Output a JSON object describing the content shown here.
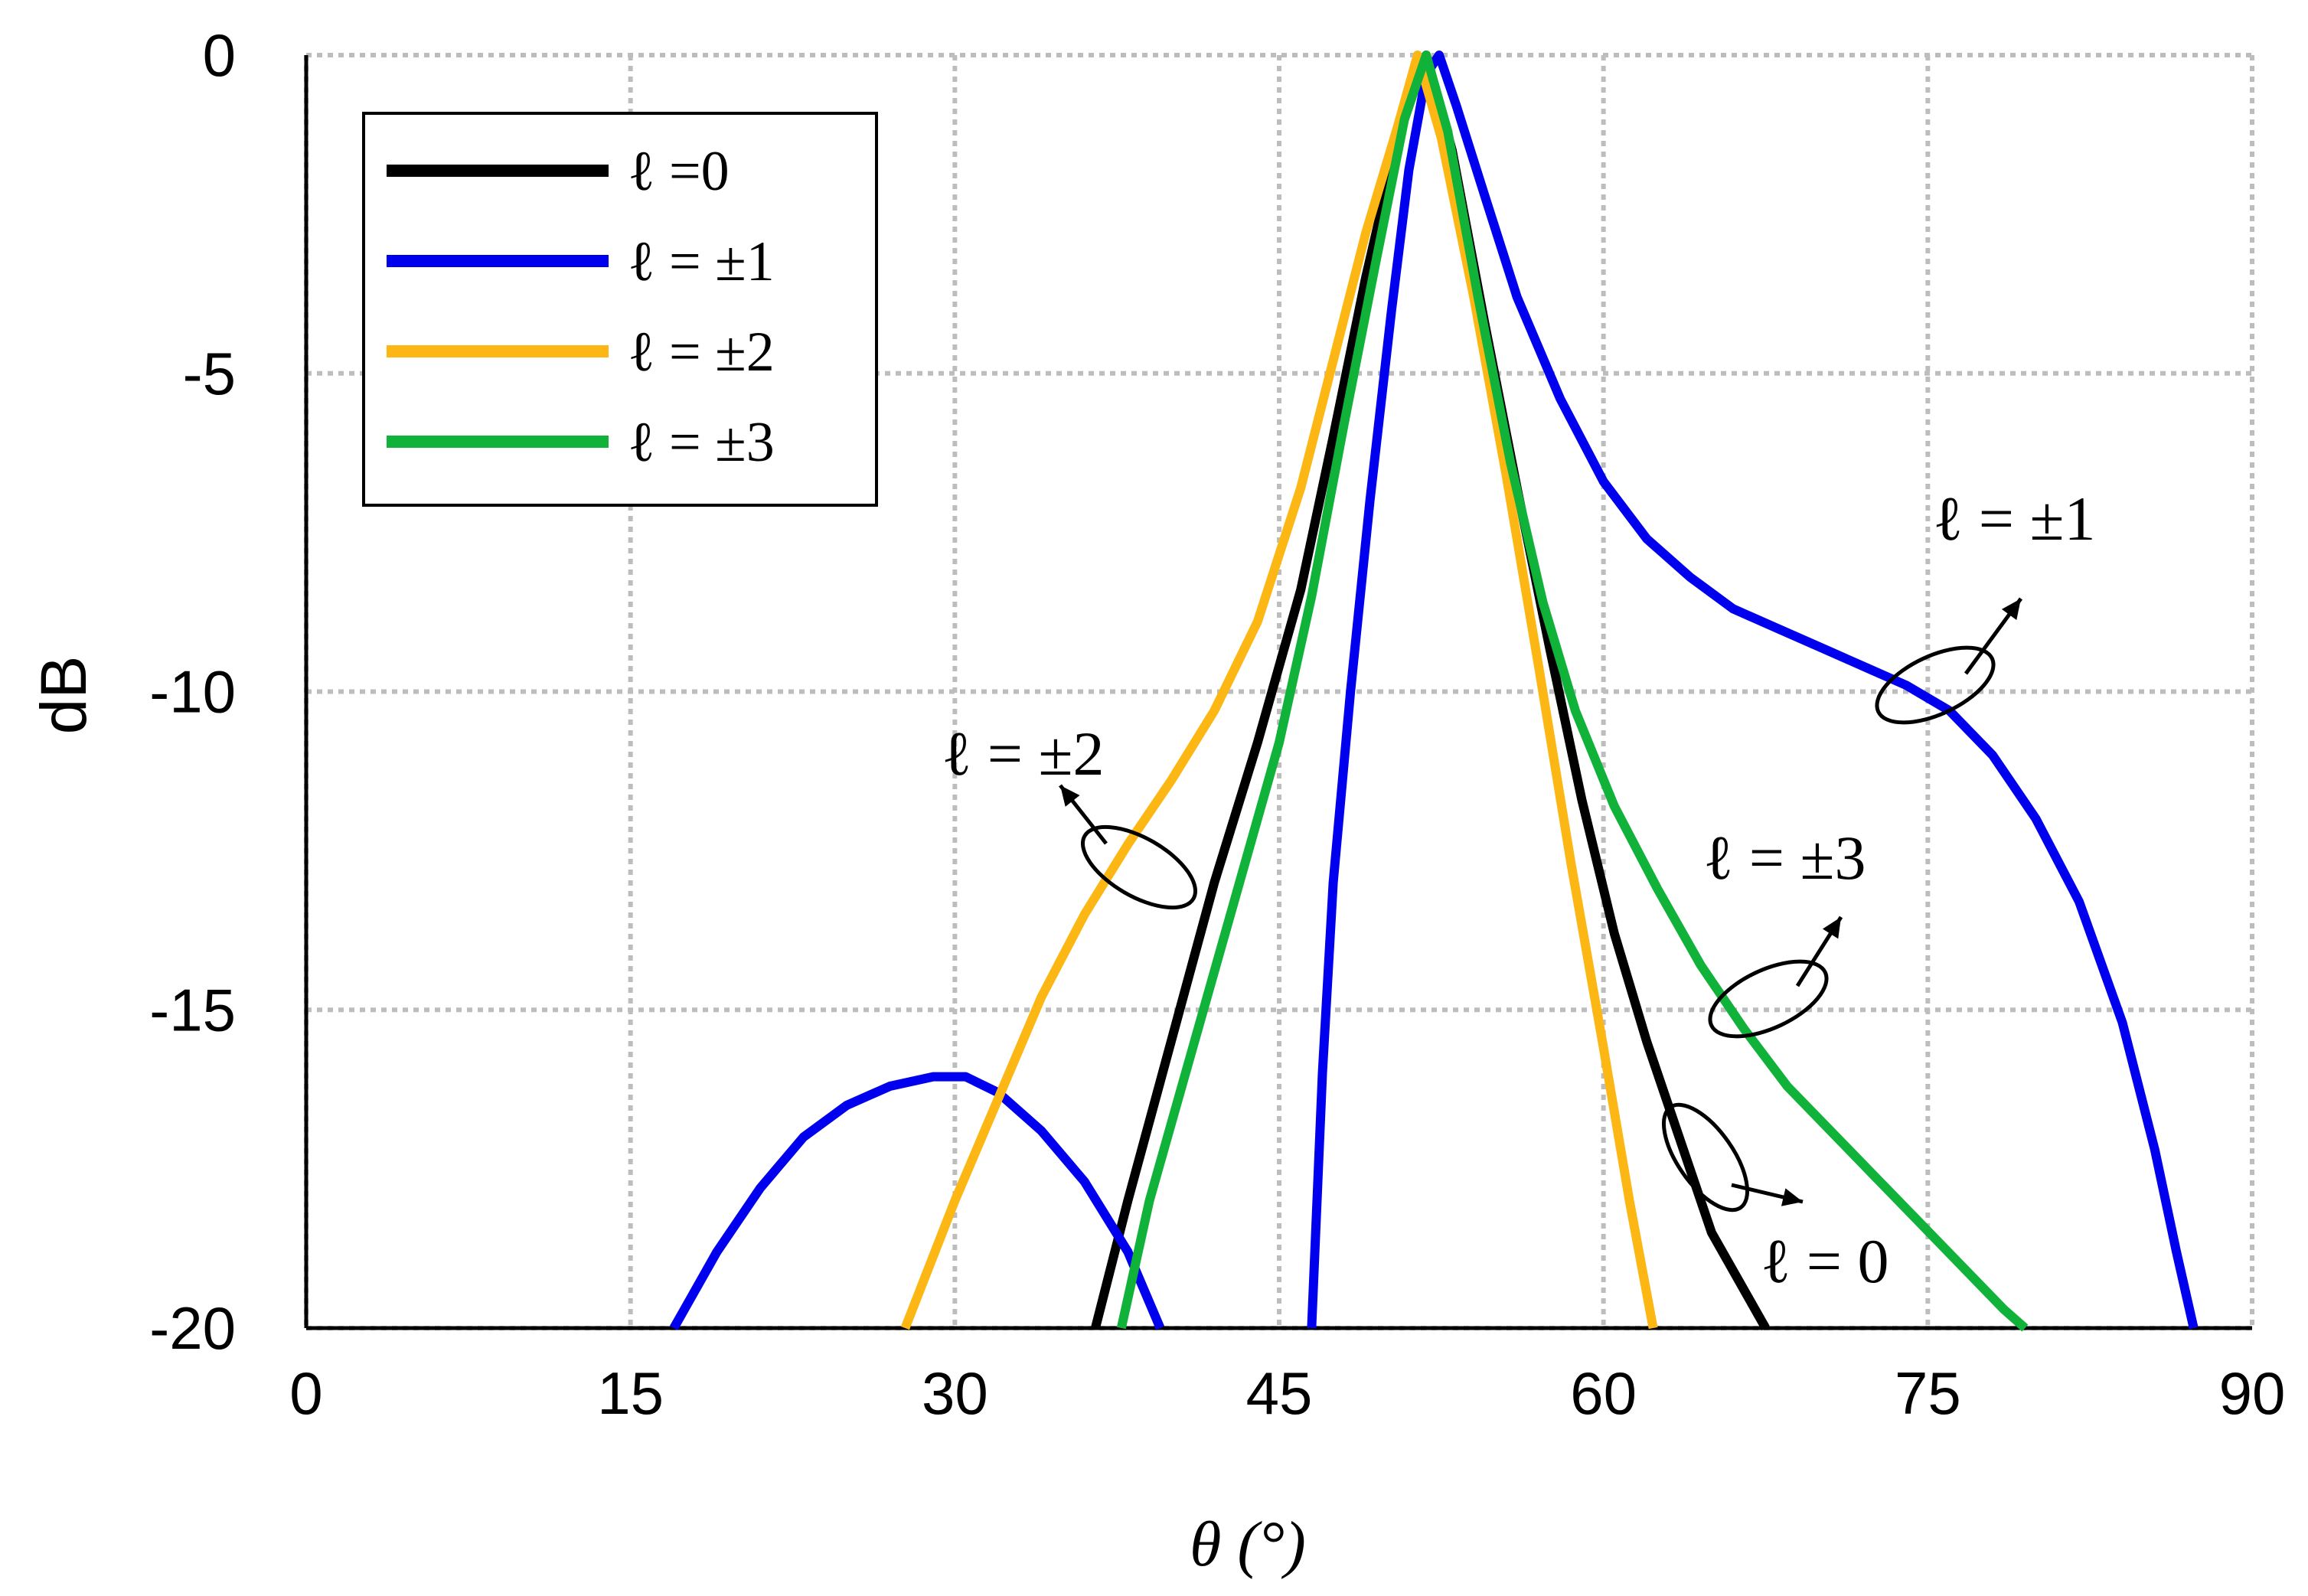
{
  "chart_data": {
    "type": "line",
    "xlabel": "θ (°)",
    "ylabel": "dB",
    "xlim": [
      0,
      90
    ],
    "ylim": [
      -20,
      0
    ],
    "xticks": [
      "0",
      "15",
      "30",
      "45",
      "60",
      "75",
      "90"
    ],
    "yticks": [
      "0",
      "-5",
      "-10",
      "-15",
      "-20"
    ],
    "grid": true,
    "legend_position": "top-left",
    "series": [
      {
        "name": "ℓ =0",
        "color": "#000000",
        "points": [
          [
            36.5,
            -20
          ],
          [
            38,
            -18
          ],
          [
            40,
            -15.5
          ],
          [
            42,
            -13
          ],
          [
            44,
            -10.8
          ],
          [
            46,
            -8.4
          ],
          [
            47.5,
            -6
          ],
          [
            49,
            -3.5
          ],
          [
            50.5,
            -1.3
          ],
          [
            51.8,
            0
          ],
          [
            53,
            -1.5
          ],
          [
            54.5,
            -4.2
          ],
          [
            56,
            -6.8
          ],
          [
            57.5,
            -9.3
          ],
          [
            59,
            -11.7
          ],
          [
            60.5,
            -13.8
          ],
          [
            62,
            -15.5
          ],
          [
            63.5,
            -17
          ],
          [
            65,
            -18.5
          ],
          [
            67.5,
            -20
          ]
        ]
      },
      {
        "name": "ℓ = ±1",
        "color": "#0000ee",
        "points": [
          [
            17,
            -20
          ],
          [
            19,
            -18.8
          ],
          [
            21,
            -17.8
          ],
          [
            23,
            -17
          ],
          [
            25,
            -16.5
          ],
          [
            27,
            -16.2
          ],
          [
            29,
            -16.05
          ],
          [
            30.5,
            -16.05
          ],
          [
            32,
            -16.3
          ],
          [
            34,
            -16.9
          ],
          [
            36,
            -17.7
          ],
          [
            38,
            -18.8
          ],
          [
            39.5,
            -20
          ]
        ]
      },
      {
        "name": "ℓ = ±1",
        "color": "#0000ee",
        "points": [
          [
            46.5,
            -20
          ],
          [
            47,
            -16
          ],
          [
            47.5,
            -13
          ],
          [
            48.3,
            -10
          ],
          [
            49.2,
            -7
          ],
          [
            50.2,
            -4
          ],
          [
            51,
            -1.8
          ],
          [
            51.8,
            -0.3
          ],
          [
            52.4,
            0
          ],
          [
            53.2,
            -0.8
          ],
          [
            54.5,
            -2.2
          ],
          [
            56,
            -3.8
          ],
          [
            58,
            -5.4
          ],
          [
            60,
            -6.7
          ],
          [
            62,
            -7.6
          ],
          [
            64,
            -8.2
          ],
          [
            66,
            -8.7
          ],
          [
            68,
            -9
          ],
          [
            70,
            -9.3
          ],
          [
            72,
            -9.6
          ],
          [
            74,
            -9.9
          ],
          [
            76,
            -10.3
          ],
          [
            78,
            -11
          ],
          [
            80,
            -12
          ],
          [
            82,
            -13.3
          ],
          [
            84,
            -15.2
          ],
          [
            85.5,
            -17.2
          ],
          [
            86.5,
            -18.8
          ],
          [
            87.3,
            -20
          ]
        ]
      },
      {
        "name": "ℓ = ±2",
        "color": "#fdb714",
        "points": [
          [
            27.7,
            -20
          ],
          [
            30,
            -18
          ],
          [
            32,
            -16.4
          ],
          [
            34,
            -14.8
          ],
          [
            36,
            -13.5
          ],
          [
            38,
            -12.4
          ],
          [
            40,
            -11.4
          ],
          [
            42,
            -10.3
          ],
          [
            44,
            -8.9
          ],
          [
            46,
            -6.8
          ],
          [
            47.5,
            -4.8
          ],
          [
            49,
            -2.8
          ],
          [
            50.5,
            -1.1
          ],
          [
            51.4,
            0
          ],
          [
            52.5,
            -1.3
          ],
          [
            54,
            -3.8
          ],
          [
            55.5,
            -6.6
          ],
          [
            57,
            -9.6
          ],
          [
            58.5,
            -12.7
          ],
          [
            60,
            -15.6
          ],
          [
            61.2,
            -18
          ],
          [
            62.3,
            -20
          ]
        ]
      },
      {
        "name": "ℓ = ±3",
        "color": "#10b23a",
        "points": [
          [
            37.7,
            -20
          ],
          [
            39,
            -18
          ],
          [
            41,
            -15.6
          ],
          [
            43,
            -13.2
          ],
          [
            45,
            -10.8
          ],
          [
            46.5,
            -8.5
          ],
          [
            48,
            -5.8
          ],
          [
            49.5,
            -3.2
          ],
          [
            50.8,
            -1
          ],
          [
            51.8,
            0
          ],
          [
            52.8,
            -1.2
          ],
          [
            54.2,
            -3.8
          ],
          [
            55.7,
            -6.4
          ],
          [
            57.2,
            -8.6
          ],
          [
            58.7,
            -10.3
          ],
          [
            60.5,
            -11.8
          ],
          [
            62.5,
            -13.1
          ],
          [
            64.5,
            -14.3
          ],
          [
            66.5,
            -15.3
          ],
          [
            68.5,
            -16.2
          ],
          [
            70.5,
            -16.9
          ],
          [
            72.5,
            -17.6
          ],
          [
            74.5,
            -18.3
          ],
          [
            76.5,
            -19
          ],
          [
            78.5,
            -19.7
          ],
          [
            79.5,
            -20
          ]
        ]
      }
    ],
    "legend": [
      {
        "label": "ℓ =0",
        "color": "#000000"
      },
      {
        "label": "ℓ = ±1",
        "color": "#0000ee"
      },
      {
        "label": "ℓ = ±2",
        "color": "#fdb714"
      },
      {
        "label": "ℓ = ±3",
        "color": "#10b23a"
      }
    ],
    "annotations": [
      {
        "label": "ℓ = ±1",
        "x": 77,
        "y": -10
      },
      {
        "label": "ℓ = ±2",
        "x": 38,
        "y": -12.9
      },
      {
        "label": "ℓ = ±3",
        "x": 68,
        "y": -14.9
      },
      {
        "label": "ℓ = 0",
        "x": 65,
        "y": -17.6
      }
    ]
  }
}
